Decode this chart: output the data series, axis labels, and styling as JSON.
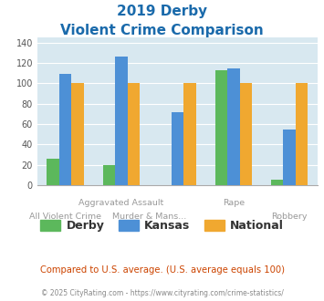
{
  "title_line1": "2019 Derby",
  "title_line2": "Violent Crime Comparison",
  "derby_all": [
    26,
    20,
    0,
    113,
    5
  ],
  "kansas_all": [
    109,
    126,
    72,
    115,
    55
  ],
  "national_all": [
    100,
    100,
    100,
    100,
    100
  ],
  "derby_color": "#5cb85c",
  "kansas_color": "#4d90d6",
  "national_color": "#f0a830",
  "bg_color": "#d8e8f0",
  "title_color": "#1a6aab",
  "subtitle_text": "Compared to U.S. average. (U.S. average equals 100)",
  "subtitle_color": "#cc4400",
  "footer_text": "© 2025 CityRating.com - https://www.cityrating.com/crime-statistics/",
  "footer_color": "#888888",
  "ylim": [
    0,
    145
  ],
  "yticks": [
    0,
    20,
    40,
    60,
    80,
    100,
    120,
    140
  ],
  "xlabel_top": [
    "",
    "Aggravated Assault",
    "",
    "Rape",
    ""
  ],
  "xlabel_bot": [
    "All Violent Crime",
    "Murder & Mans...",
    "",
    "",
    "Robbery"
  ],
  "legend_labels": [
    "Derby",
    "Kansas",
    "National"
  ]
}
